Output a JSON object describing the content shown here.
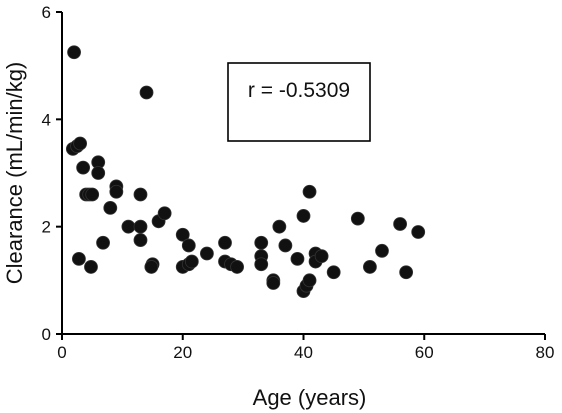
{
  "chart_data": {
    "type": "scatter",
    "xlabel": "Age (years)",
    "ylabel": "Clearance (mL/min/kg)",
    "xlim": [
      0,
      80
    ],
    "ylim": [
      0,
      6
    ],
    "xticks": [
      0,
      20,
      40,
      60,
      80
    ],
    "yticks": [
      0,
      2,
      4,
      6
    ],
    "annotation": "r = -0.5309",
    "grid": false,
    "colors": {
      "points": "#111111",
      "axes": "#000000"
    },
    "series": [
      {
        "points": [
          [
            2,
            5.25
          ],
          [
            1.8,
            3.45
          ],
          [
            2.5,
            3.5
          ],
          [
            3,
            3.55
          ],
          [
            3.5,
            3.1
          ],
          [
            2.8,
            1.4
          ],
          [
            4,
            2.6
          ],
          [
            4.5,
            2.6
          ],
          [
            5,
            2.6
          ],
          [
            4.8,
            1.25
          ],
          [
            6,
            3.2
          ],
          [
            6,
            3.0
          ],
          [
            6.8,
            1.7
          ],
          [
            8,
            2.35
          ],
          [
            9,
            2.75
          ],
          [
            9,
            2.65
          ],
          [
            11,
            2.0
          ],
          [
            13,
            2.6
          ],
          [
            13,
            2.0
          ],
          [
            13,
            1.75
          ],
          [
            14,
            4.5
          ],
          [
            15,
            1.3
          ],
          [
            14.8,
            1.25
          ],
          [
            16,
            2.1
          ],
          [
            17,
            2.25
          ],
          [
            20,
            1.85
          ],
          [
            20,
            1.25
          ],
          [
            21,
            1.65
          ],
          [
            21,
            1.3
          ],
          [
            21.5,
            1.35
          ],
          [
            24,
            1.5
          ],
          [
            27,
            1.7
          ],
          [
            27,
            1.35
          ],
          [
            28,
            1.3
          ],
          [
            29,
            1.25
          ],
          [
            33,
            1.7
          ],
          [
            33,
            1.45
          ],
          [
            33,
            1.3
          ],
          [
            35,
            1.0
          ],
          [
            35,
            0.95
          ],
          [
            36,
            2.0
          ],
          [
            37,
            1.65
          ],
          [
            39,
            1.4
          ],
          [
            40,
            2.2
          ],
          [
            40,
            0.8
          ],
          [
            40.5,
            0.9
          ],
          [
            41,
            2.65
          ],
          [
            41,
            1.0
          ],
          [
            42,
            1.5
          ],
          [
            42,
            1.35
          ],
          [
            43,
            1.45
          ],
          [
            45,
            1.15
          ],
          [
            49,
            2.15
          ],
          [
            51,
            1.25
          ],
          [
            53,
            1.55
          ],
          [
            56,
            2.05
          ],
          [
            57,
            1.15
          ],
          [
            59,
            1.9
          ]
        ]
      }
    ]
  }
}
